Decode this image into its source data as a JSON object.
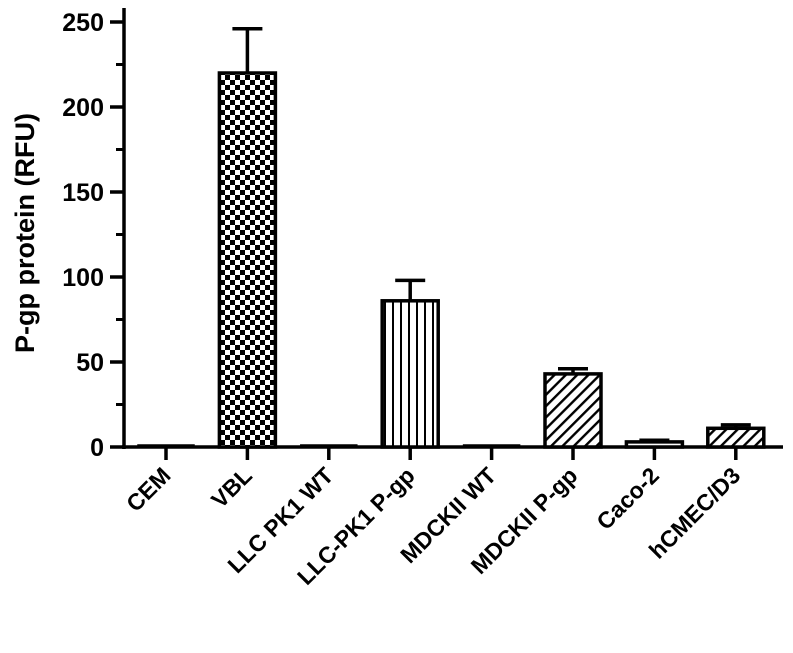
{
  "chart_data": {
    "type": "bar",
    "title": "",
    "xlabel": "",
    "ylabel": "P-gp protein (RFU)",
    "ylim": [
      0,
      250
    ],
    "yticks": [
      0,
      50,
      100,
      150,
      200,
      250
    ],
    "grid": false,
    "legend": "none",
    "categories": [
      "CEM",
      "VBL",
      "LLC PK1 WT",
      "LLC-PK1 P-gp",
      "MDCKII WT",
      "MDCKII P-gp",
      "Caco-2",
      "hCMEC/D3"
    ],
    "values": [
      0,
      220,
      0,
      86,
      0,
      43,
      3,
      11
    ],
    "errors": [
      0,
      26,
      0,
      12,
      0,
      3,
      1,
      2
    ],
    "patterns": [
      "solid",
      "checker",
      "solid",
      "vertical-lines",
      "solid",
      "diagonal-lines",
      "solid",
      "diagonal-lines"
    ],
    "colors": {
      "bar_stroke": "#000000",
      "bar_fill": "#ffffff",
      "pattern": "#000000"
    }
  }
}
